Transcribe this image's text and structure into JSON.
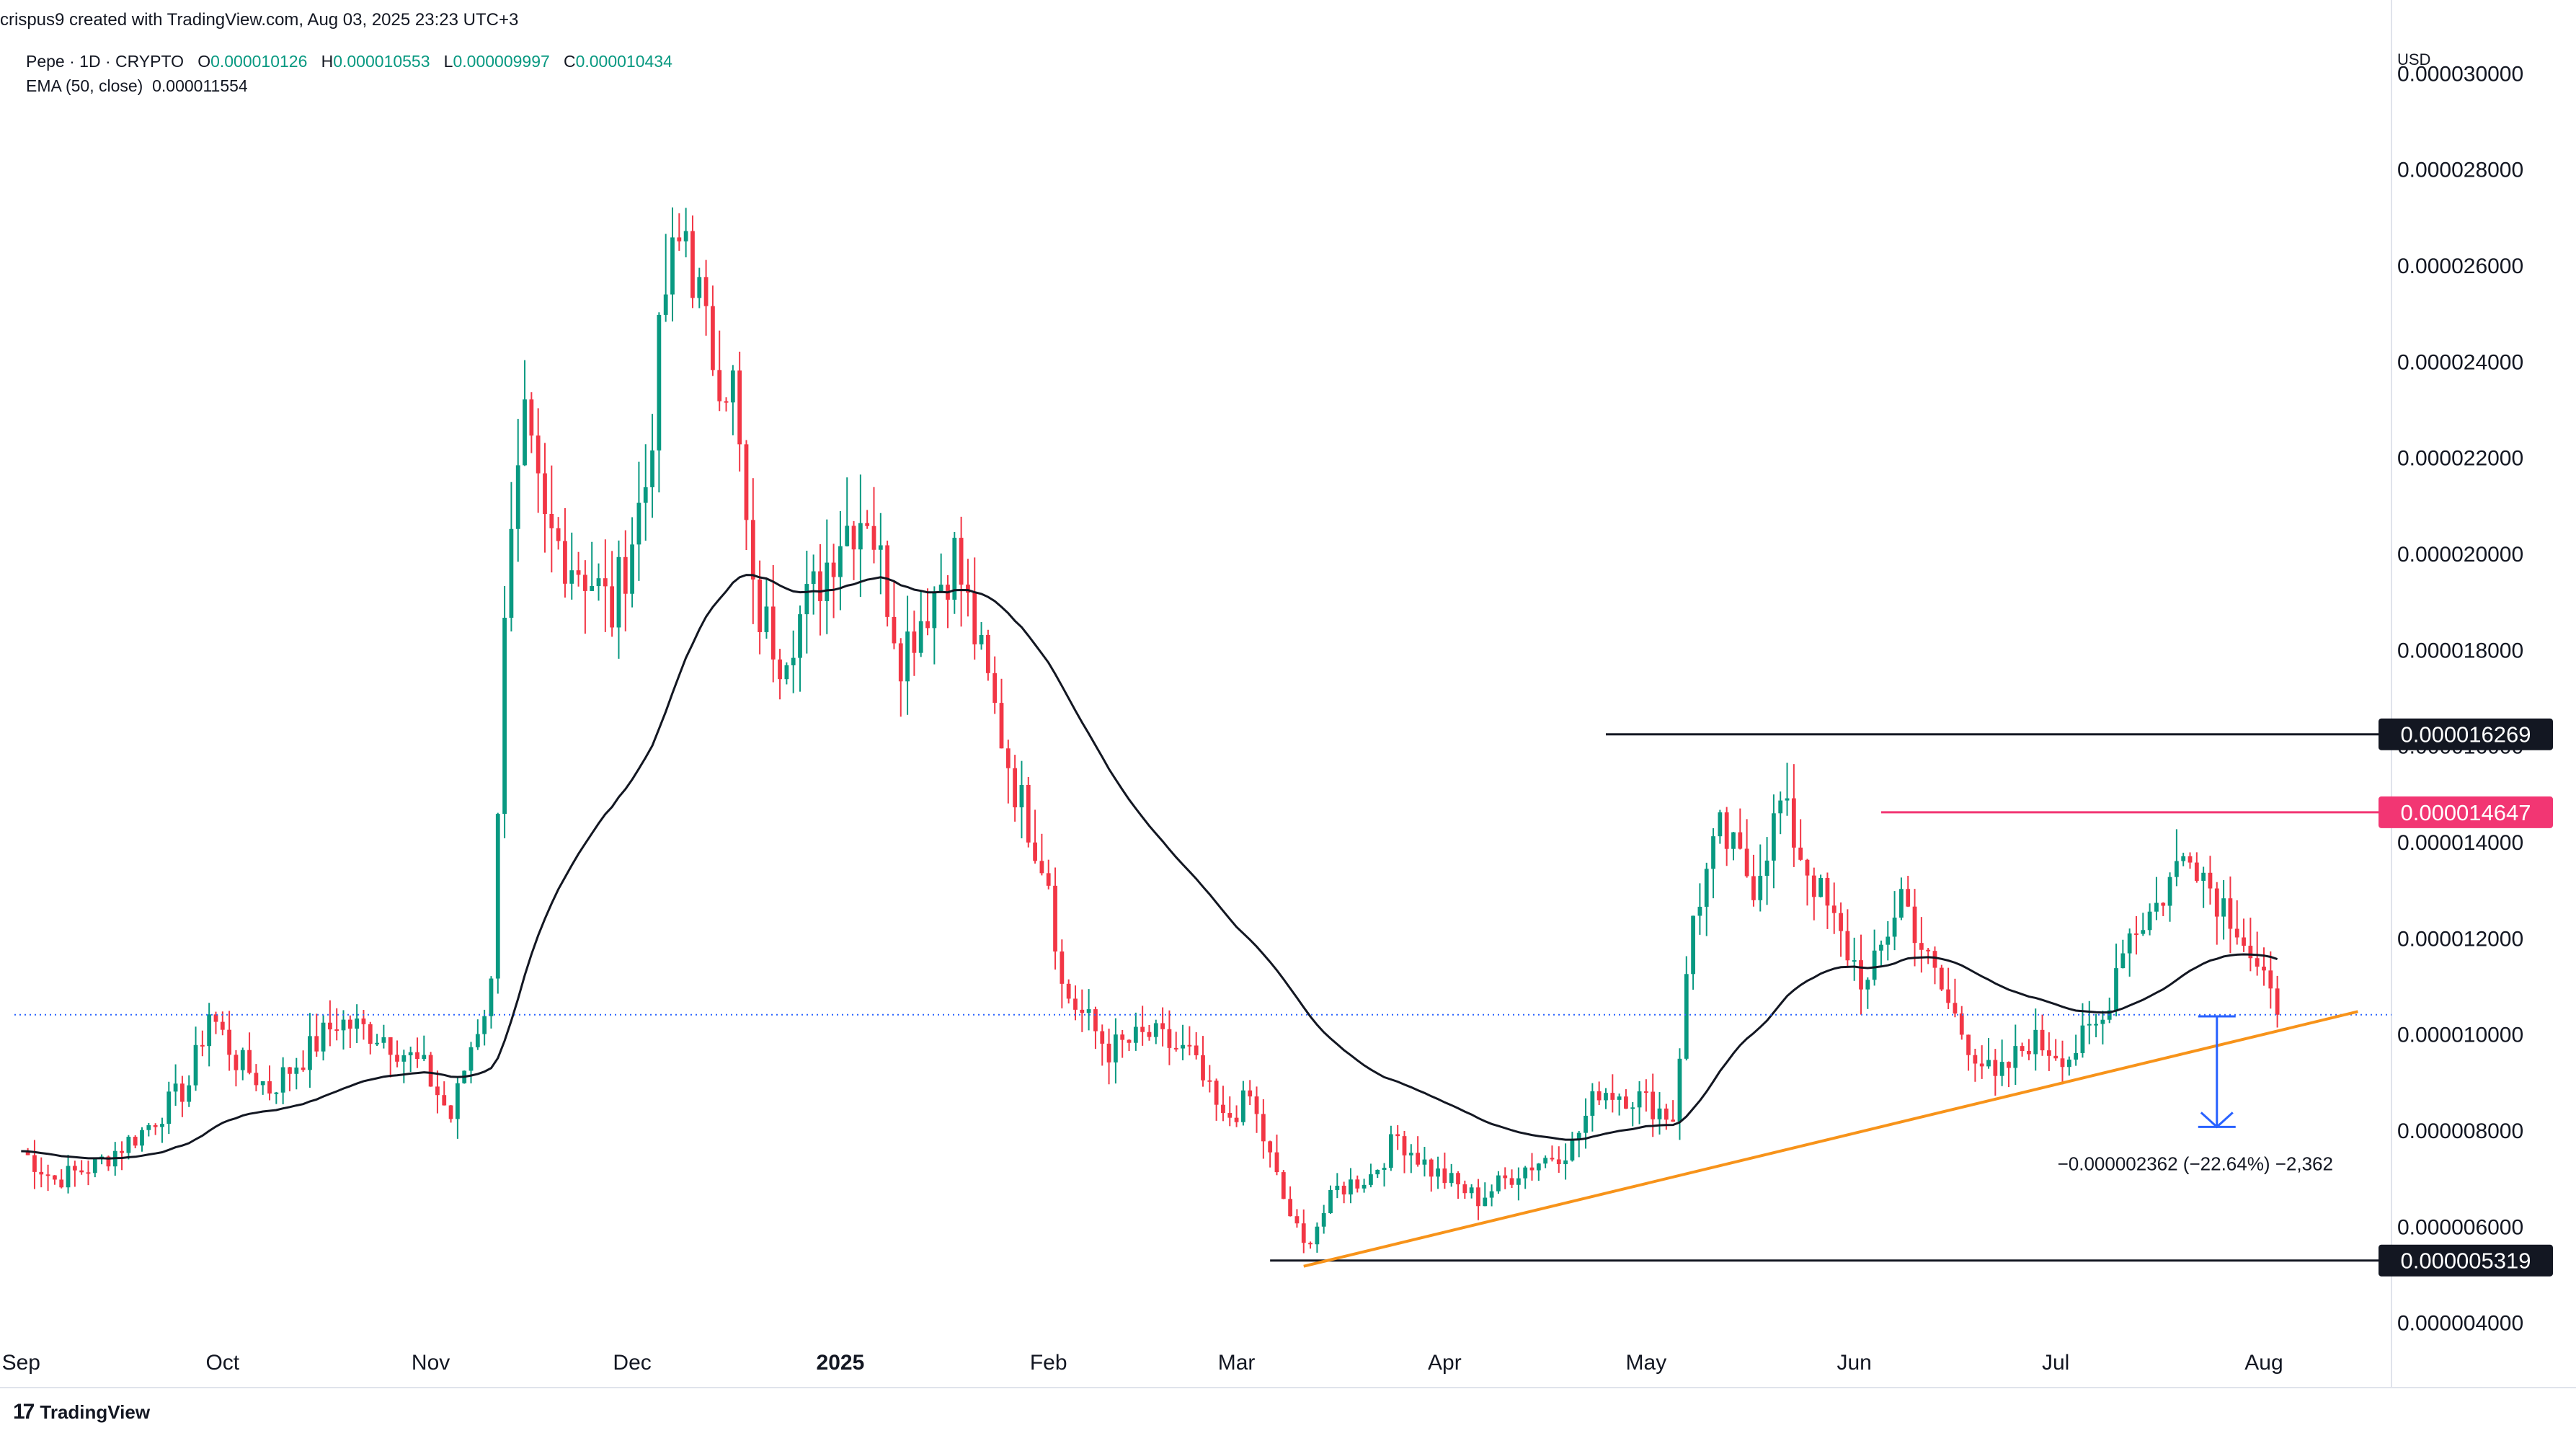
{
  "header": {
    "credit": "crispus9 created with TradingView.com, Aug 03, 2025 23:23 UTC+3",
    "symbol": "Pepe · 1D · CRYPTO",
    "ohlc": {
      "o_label": "O",
      "o": "0.000010126",
      "h_label": "H",
      "h": "0.000010553",
      "l_label": "L",
      "l": "0.000009997",
      "c_label": "C",
      "c": "0.000010434"
    },
    "ema_label": "EMA (50, close)",
    "ema_value": "0.000011554",
    "currency": "USD"
  },
  "branding": {
    "logo": "17",
    "name": "TradingView"
  },
  "colors": {
    "up": "#089981",
    "down": "#f23645",
    "ema": "#131722",
    "trend": "#f7931a",
    "resistance": "#f23673",
    "level": "#131722",
    "measure": "#2962ff",
    "last": "#2962ff"
  },
  "chart_data": {
    "type": "candlestick",
    "y_axis": {
      "min": 3.5e-06,
      "max": 3.05e-05,
      "ticks": [
        4e-06,
        6e-06,
        8e-06,
        1e-05,
        1.2e-05,
        1.4e-05,
        1.6e-05,
        1.8e-05,
        2e-05,
        2.2e-05,
        2.4e-05,
        2.6e-05,
        2.8e-05,
        3e-05
      ],
      "tick_labels": [
        "0.000004000",
        "0.000006000",
        "0.000008000",
        "0.000010000",
        "0.000012000",
        "0.000014000",
        "0.000016000",
        "0.000018000",
        "0.000020000",
        "0.000022000",
        "0.000024000",
        "0.000026000",
        "0.000028000",
        "0.000030000"
      ]
    },
    "x_axis": {
      "start": "2024-08-31",
      "end": "2025-08-20",
      "ticks": [
        {
          "date": "2024-09-01",
          "label": "Sep"
        },
        {
          "date": "2024-10-01",
          "label": "Oct"
        },
        {
          "date": "2024-11-01",
          "label": "Nov"
        },
        {
          "date": "2024-12-01",
          "label": "Dec"
        },
        {
          "date": "2025-01-01",
          "label": "2025",
          "bold": true
        },
        {
          "date": "2025-02-01",
          "label": "Feb"
        },
        {
          "date": "2025-03-01",
          "label": "Mar"
        },
        {
          "date": "2025-04-01",
          "label": "Apr"
        },
        {
          "date": "2025-05-01",
          "label": "May"
        },
        {
          "date": "2025-06-01",
          "label": "Jun"
        },
        {
          "date": "2025-07-01",
          "label": "Jul"
        },
        {
          "date": "2025-08-01",
          "label": "Aug"
        }
      ]
    },
    "anchors": [
      [
        "2024-09-01",
        7.6e-06
      ],
      [
        "2024-09-06",
        7e-06
      ],
      [
        "2024-09-12",
        7.3e-06
      ],
      [
        "2024-09-19",
        8e-06
      ],
      [
        "2024-09-26",
        9e-06
      ],
      [
        "2024-09-29",
        1.05e-05
      ],
      [
        "2024-10-03",
        9.5e-06
      ],
      [
        "2024-10-08",
        8.9e-06
      ],
      [
        "2024-10-14",
        9.7e-06
      ],
      [
        "2024-10-18",
        1.03e-05
      ],
      [
        "2024-10-25",
        1e-05
      ],
      [
        "2024-10-31",
        9.3e-06
      ],
      [
        "2024-11-04",
        8.3e-06
      ],
      [
        "2024-11-07",
        9.8e-06
      ],
      [
        "2024-11-10",
        1.1e-05
      ],
      [
        "2024-11-12",
        1.9e-05
      ],
      [
        "2024-11-15",
        2.25e-05
      ],
      [
        "2024-11-18",
        2.05e-05
      ],
      [
        "2024-11-25",
        1.95e-05
      ],
      [
        "2024-11-28",
        1.88e-05
      ],
      [
        "2024-12-03",
        2.15e-05
      ],
      [
        "2024-12-06",
        2.55e-05
      ],
      [
        "2024-12-09",
        2.68e-05
      ],
      [
        "2024-12-12",
        2.45e-05
      ],
      [
        "2024-12-16",
        2.35e-05
      ],
      [
        "2024-12-19",
        1.9e-05
      ],
      [
        "2024-12-23",
        1.8e-05
      ],
      [
        "2024-12-28",
        1.92e-05
      ],
      [
        "2025-01-01",
        2.05e-05
      ],
      [
        "2025-01-05",
        2.1e-05
      ],
      [
        "2025-01-10",
        1.8e-05
      ],
      [
        "2025-01-16",
        1.95e-05
      ],
      [
        "2025-01-18",
        2e-05
      ],
      [
        "2025-01-22",
        1.78e-05
      ],
      [
        "2025-01-27",
        1.52e-05
      ],
      [
        "2025-02-01",
        1.33e-05
      ],
      [
        "2025-02-03",
        1.1e-05
      ],
      [
        "2025-02-10",
        9.7e-06
      ],
      [
        "2025-02-16",
        1e-05
      ],
      [
        "2025-02-22",
        9.6e-06
      ],
      [
        "2025-02-27",
        8.2e-06
      ],
      [
        "2025-03-03",
        8.7e-06
      ],
      [
        "2025-03-08",
        6.6e-06
      ],
      [
        "2025-03-11",
        5.6e-06
      ],
      [
        "2025-03-16",
        6.8e-06
      ],
      [
        "2025-03-21",
        7.1e-06
      ],
      [
        "2025-03-25",
        7.9e-06
      ],
      [
        "2025-03-30",
        7.2e-06
      ],
      [
        "2025-04-06",
        6.6e-06
      ],
      [
        "2025-04-12",
        7.2e-06
      ],
      [
        "2025-04-20",
        7.7e-06
      ],
      [
        "2025-04-24",
        8.9e-06
      ],
      [
        "2025-04-30",
        8.7e-06
      ],
      [
        "2025-05-05",
        8.3e-06
      ],
      [
        "2025-05-08",
        1.25e-05
      ],
      [
        "2025-05-12",
        1.42e-05
      ],
      [
        "2025-05-17",
        1.32e-05
      ],
      [
        "2025-05-21",
        1.48e-05
      ],
      [
        "2025-05-24",
        1.38e-05
      ],
      [
        "2025-05-30",
        1.2e-05
      ],
      [
        "2025-06-03",
        1.1e-05
      ],
      [
        "2025-06-08",
        1.3e-05
      ],
      [
        "2025-06-12",
        1.15e-05
      ],
      [
        "2025-06-17",
        1.01e-05
      ],
      [
        "2025-06-22",
        9e-06
      ],
      [
        "2025-06-27",
        9.9e-06
      ],
      [
        "2025-07-03",
        9.6e-06
      ],
      [
        "2025-07-08",
        1.03e-05
      ],
      [
        "2025-07-11",
        1.2e-05
      ],
      [
        "2025-07-16",
        1.27e-05
      ],
      [
        "2025-07-21",
        1.4e-05
      ],
      [
        "2025-07-24",
        1.31e-05
      ],
      [
        "2025-07-28",
        1.24e-05
      ],
      [
        "2025-07-31",
        1.13e-05
      ],
      [
        "2025-08-03",
        1.04e-05
      ]
    ],
    "last_price": 1.0434e-05,
    "levels": [
      {
        "name": "resistance-top",
        "value": 1.6269e-05,
        "label": "0.000016269",
        "from": "2025-04-25",
        "to": "2025-08-20",
        "color": "#131722"
      },
      {
        "name": "resistance-mid",
        "value": 1.4647e-05,
        "label": "0.000014647",
        "from": "2025-06-05",
        "to": "2025-08-20",
        "color": "#f23673"
      },
      {
        "name": "support-low",
        "value": 5.319e-06,
        "label": "0.000005319",
        "from": "2025-03-06",
        "to": "2025-08-20",
        "color": "#131722"
      }
    ],
    "trendline": {
      "from": [
        "2025-03-11",
        5.2e-06
      ],
      "to": [
        "2025-08-15",
        1.05e-05
      ],
      "color": "#f7931a"
    },
    "measure": {
      "date": "2025-07-25",
      "from": 1.04e-05,
      "to": 8.1e-06,
      "label": "−0.000002362 (−22.64%) −2,362"
    }
  }
}
